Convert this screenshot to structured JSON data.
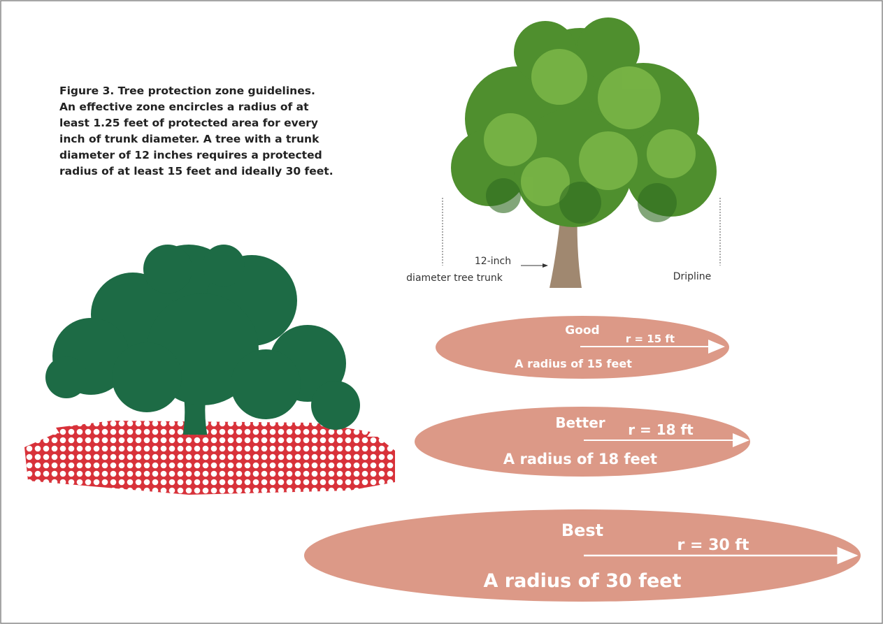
{
  "caption": {
    "lines": [
      "Figure 3. Tree protection zone guidelines.",
      "An effective zone encircles a radius of at",
      "least 1.25 feet of protected area for every",
      "inch of trunk diameter. A tree with a trunk",
      "diameter of 12 inches requires a protected",
      "radius of at least 15 feet and ideally 30 feet."
    ]
  },
  "tree": {
    "trunk_label": [
      "12-inch",
      "diameter tree trunk"
    ],
    "dripline_label": "Dripline"
  },
  "zones": [
    {
      "rating": "Good",
      "radius": "r = 15 ft",
      "description": "A radius of 15 feet"
    },
    {
      "rating": "Better",
      "radius": "r  = 18 ft",
      "description": "A radius of 18 feet"
    },
    {
      "rating": "Best",
      "radius": "r = 30 ft",
      "description": "A radius of 30 feet"
    }
  ]
}
